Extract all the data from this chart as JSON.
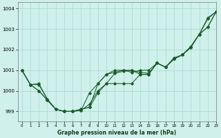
{
  "title": "Graphe pression niveau de la mer (hPa)",
  "background_color": "#cff0eb",
  "grid_color": "#a8d8d0",
  "line_color": "#1a5c2a",
  "xlim": [
    -0.5,
    23
  ],
  "ylim": [
    998.5,
    1004.3
  ],
  "yticks": [
    999,
    1000,
    1001,
    1002,
    1003,
    1004
  ],
  "xticks": [
    0,
    1,
    2,
    3,
    4,
    5,
    6,
    7,
    8,
    9,
    10,
    11,
    12,
    13,
    14,
    15,
    16,
    17,
    18,
    19,
    20,
    21,
    22,
    23
  ],
  "line1_x": [
    0,
    1,
    2,
    3,
    4,
    5,
    6,
    7,
    8,
    9,
    10,
    11,
    12,
    13,
    14,
    15,
    16,
    17,
    18,
    19,
    20,
    21,
    22,
    23
  ],
  "line1_y": [
    1001.0,
    1000.3,
    1000.3,
    999.6,
    999.1,
    999.0,
    999.0,
    999.1,
    999.2,
    999.9,
    1000.35,
    1000.85,
    1000.95,
    1001.0,
    1000.9,
    1000.85,
    1001.35,
    1001.15,
    1001.55,
    1001.75,
    1002.15,
    1002.75,
    1003.55,
    1003.85
  ],
  "line2_x": [
    0,
    1,
    2,
    3,
    4,
    5,
    6,
    7,
    8,
    9,
    10,
    11,
    12,
    13,
    14,
    15,
    16,
    17,
    18,
    19,
    20,
    21,
    22,
    23
  ],
  "line2_y": [
    1001.0,
    1000.3,
    1000.0,
    999.55,
    999.1,
    999.0,
    999.0,
    999.05,
    999.35,
    1000.0,
    1000.35,
    1000.35,
    1000.35,
    1000.35,
    1000.8,
    1000.8,
    1001.35,
    1001.15,
    1001.55,
    1001.75,
    1002.15,
    1002.75,
    1003.1,
    1003.85
  ],
  "line3_x": [
    0,
    1,
    2,
    3,
    4,
    5,
    6,
    7,
    8,
    9,
    10,
    11,
    12,
    13,
    14,
    15,
    16,
    17,
    18,
    19,
    20,
    21,
    22,
    23
  ],
  "line3_y": [
    1001.0,
    1000.3,
    1000.0,
    999.55,
    999.1,
    999.0,
    999.0,
    999.05,
    999.9,
    1000.35,
    1000.8,
    1000.9,
    1001.0,
    1000.9,
    1001.0,
    1001.0,
    1001.35,
    1001.15,
    1001.55,
    1001.75,
    1002.15,
    1002.75,
    1003.1,
    1003.85
  ],
  "line4_x": [
    0,
    1,
    2,
    3,
    4,
    5,
    6,
    7,
    8,
    9,
    10,
    11,
    12,
    13,
    14,
    15,
    16,
    17,
    18,
    19,
    20,
    21,
    22,
    23
  ],
  "line4_y": [
    1001.0,
    1000.3,
    1000.35,
    999.6,
    999.1,
    999.0,
    999.0,
    999.1,
    999.2,
    1000.35,
    1000.8,
    1001.0,
    1001.0,
    1001.0,
    1000.8,
    1000.8,
    1001.35,
    1001.15,
    1001.6,
    1001.75,
    1002.1,
    1002.75,
    1003.5,
    1003.85
  ]
}
